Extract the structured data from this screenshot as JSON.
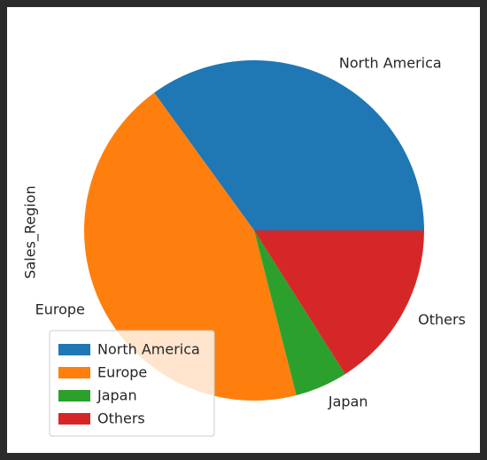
{
  "chart_data": {
    "type": "pie",
    "ylabel": "Sales_Region",
    "labels": [
      "North America",
      "Europe",
      "Japan",
      "Others"
    ],
    "values": [
      0.35,
      0.44,
      0.05,
      0.16
    ],
    "colors": [
      "#1f77b4",
      "#ff7f0e",
      "#2ca02c",
      "#d62728"
    ],
    "start_angle_deg": 0,
    "direction": "counterclockwise",
    "legend": {
      "placement": "lower-left",
      "entries": [
        "North America",
        "Europe",
        "Japan",
        "Others"
      ]
    }
  }
}
